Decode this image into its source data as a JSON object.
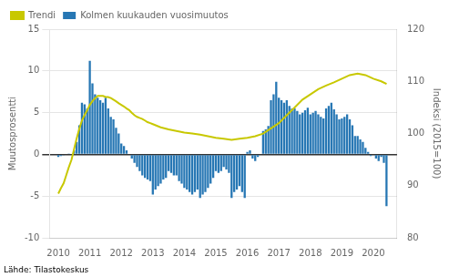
{
  "chart_data": {
    "type": "bar",
    "ylabel": "Muutosprosentti",
    "y2label": "Indeksi (2015=100)",
    "annotations": [
      "Lähde: Tilastokeskus"
    ],
    "xlim": [
      2009.72,
      2020.75
    ],
    "xticks": [
      2010,
      2011,
      2012,
      2013,
      2014,
      2015,
      2016,
      2017,
      2018,
      2019,
      2020
    ],
    "ylim": [
      -10,
      15
    ],
    "yticks": [
      -10,
      -5,
      0,
      5,
      10,
      15
    ],
    "y2lim": [
      80,
      120
    ],
    "y2ticks": [
      80,
      90,
      100,
      110,
      120
    ],
    "grid": "y",
    "legend": "upper left",
    "series": [
      {
        "name": "Trendi",
        "type": "line",
        "axis": "y2",
        "color": "#C8C800",
        "x": [
          2010.0,
          2010.08,
          2010.17,
          2010.25,
          2010.33,
          2010.42,
          2010.5,
          2010.58,
          2010.67,
          2010.75,
          2010.83,
          2010.92,
          2011.0,
          2011.08,
          2011.17,
          2011.25,
          2011.33,
          2011.42,
          2011.5,
          2011.58,
          2011.67,
          2011.75,
          2011.83,
          2011.92,
          2012.0,
          2012.08,
          2012.17,
          2012.25,
          2012.33,
          2012.42,
          2012.5,
          2012.58,
          2012.67,
          2012.75,
          2012.83,
          2012.92,
          2013.0,
          2013.25,
          2013.5,
          2013.75,
          2014.0,
          2014.25,
          2014.5,
          2014.75,
          2015.0,
          2015.25,
          2015.5,
          2015.75,
          2016.0,
          2016.25,
          2016.5,
          2016.75,
          2017.0,
          2017.25,
          2017.5,
          2017.75,
          2018.0,
          2018.25,
          2018.5,
          2018.75,
          2019.0,
          2019.25,
          2019.5,
          2019.75,
          2020.0,
          2020.25,
          2020.42
        ],
        "values": [
          88.5,
          89.5,
          90.5,
          92.0,
          93.5,
          95.0,
          97.0,
          99.0,
          101.0,
          102.5,
          103.5,
          104.5,
          105.5,
          106.2,
          106.8,
          107.2,
          107.2,
          107.2,
          107.0,
          107.0,
          106.8,
          106.5,
          106.2,
          105.8,
          105.5,
          105.2,
          104.8,
          104.5,
          104.0,
          103.5,
          103.2,
          103.0,
          102.8,
          102.5,
          102.2,
          102.0,
          101.8,
          101.2,
          100.8,
          100.5,
          100.2,
          100.0,
          99.8,
          99.5,
          99.2,
          99.0,
          98.8,
          99.0,
          99.2,
          99.5,
          100.0,
          101.0,
          102.0,
          103.5,
          105.0,
          106.5,
          107.5,
          108.5,
          109.2,
          109.8,
          110.5,
          111.2,
          111.5,
          111.2,
          110.5,
          110.0,
          109.5
        ]
      },
      {
        "name": "Kolmen kuukauden vuosimuutos",
        "type": "bar",
        "color": "#2777B4",
        "x": [
          2010.0,
          2010.0833333333333,
          2010.1666666666667,
          2010.25,
          2010.3333333333333,
          2010.4166666666667,
          2010.5,
          2010.5833333333333,
          2010.6666666666667,
          2010.75,
          2010.8333333333333,
          2010.9166666666667,
          2011.0,
          2011.0833333333333,
          2011.1666666666667,
          2011.25,
          2011.3333333333333,
          2011.4166666666667,
          2011.5,
          2011.5833333333333,
          2011.6666666666667,
          2011.75,
          2011.8333333333333,
          2011.9166666666667,
          2012.0,
          2012.0833333333333,
          2012.1666666666667,
          2012.25,
          2012.3333333333333,
          2012.4166666666667,
          2012.5,
          2012.5833333333333,
          2012.6666666666667,
          2012.75,
          2012.8333333333333,
          2012.9166666666667,
          2013.0,
          2013.0833333333333,
          2013.1666666666667,
          2013.25,
          2013.3333333333333,
          2013.4166666666667,
          2013.5,
          2013.5833333333333,
          2013.6666666666667,
          2013.75,
          2013.8333333333333,
          2013.9166666666667,
          2014.0,
          2014.0833333333333,
          2014.1666666666667,
          2014.25,
          2014.3333333333333,
          2014.4166666666667,
          2014.5,
          2014.5833333333333,
          2014.6666666666667,
          2014.75,
          2014.8333333333333,
          2014.9166666666667,
          2015.0,
          2015.0833333333333,
          2015.1666666666667,
          2015.25,
          2015.3333333333333,
          2015.4166666666667,
          2015.5,
          2015.5833333333333,
          2015.6666666666667,
          2015.75,
          2015.8333333333333,
          2015.9166666666667,
          2016.0,
          2016.0833333333333,
          2016.1666666666667,
          2016.25,
          2016.3333333333333,
          2016.4166666666667,
          2016.5,
          2016.5833333333333,
          2016.6666666666667,
          2016.75,
          2016.8333333333333,
          2016.9166666666667,
          2017.0,
          2017.0833333333333,
          2017.1666666666667,
          2017.25,
          2017.3333333333333,
          2017.4166666666667,
          2017.5,
          2017.5833333333333,
          2017.6666666666667,
          2017.75,
          2017.8333333333333,
          2017.9166666666667,
          2018.0,
          2018.0833333333333,
          2018.1666666666667,
          2018.25,
          2018.3333333333333,
          2018.4166666666667,
          2018.5,
          2018.5833333333333,
          2018.6666666666667,
          2018.75,
          2018.8333333333333,
          2018.9166666666667,
          2019.0,
          2019.0833333333333,
          2019.1666666666667,
          2019.25,
          2019.3333333333333,
          2019.4166666666667,
          2019.5,
          2019.5833333333333,
          2019.6666666666667,
          2019.75,
          2019.8333333333333,
          2019.9166666666667,
          2020.0,
          2020.0833333333333,
          2020.1666666666667,
          2020.25,
          2020.3333333333333,
          2020.4166666666667
        ],
        "values": [
          -0.3,
          -0.2,
          -0.1,
          0.0,
          0.1,
          0.0,
          0.5,
          1.5,
          3.5,
          6.2,
          6.0,
          5.5,
          11.2,
          8.5,
          7.2,
          6.8,
          6.5,
          6.2,
          6.8,
          5.5,
          4.5,
          4.2,
          3.2,
          2.5,
          1.3,
          1.0,
          0.5,
          0.0,
          -0.5,
          -1.0,
          -1.5,
          -2.0,
          -2.5,
          -2.8,
          -3.0,
          -3.2,
          -4.8,
          -4.2,
          -3.8,
          -3.5,
          -3.0,
          -2.8,
          -2.0,
          -2.2,
          -2.5,
          -2.5,
          -3.2,
          -3.5,
          -4.0,
          -4.2,
          -4.5,
          -4.8,
          -4.5,
          -4.2,
          -5.2,
          -4.8,
          -4.5,
          -4.0,
          -3.5,
          -2.8,
          -2.0,
          -2.2,
          -2.0,
          -1.5,
          -1.8,
          -2.2,
          -5.2,
          -4.5,
          -4.2,
          -3.8,
          -4.5,
          -5.2,
          0.3,
          0.5,
          -0.5,
          -0.8,
          -0.3,
          0.0,
          2.8,
          3.0,
          3.4,
          6.5,
          7.2,
          8.7,
          6.8,
          6.5,
          6.2,
          6.5,
          5.8,
          5.5,
          5.5,
          5.2,
          4.8,
          5.0,
          5.3,
          5.6,
          4.8,
          5.0,
          5.2,
          4.8,
          4.5,
          4.3,
          5.5,
          5.8,
          6.2,
          5.4,
          4.8,
          4.2,
          4.3,
          4.5,
          4.8,
          4.2,
          3.5,
          2.2,
          2.2,
          1.8,
          1.5,
          0.8,
          0.3,
          -0.2,
          0.0,
          -0.5,
          -0.8,
          -0.3,
          -1.0,
          -6.2
        ]
      }
    ]
  }
}
